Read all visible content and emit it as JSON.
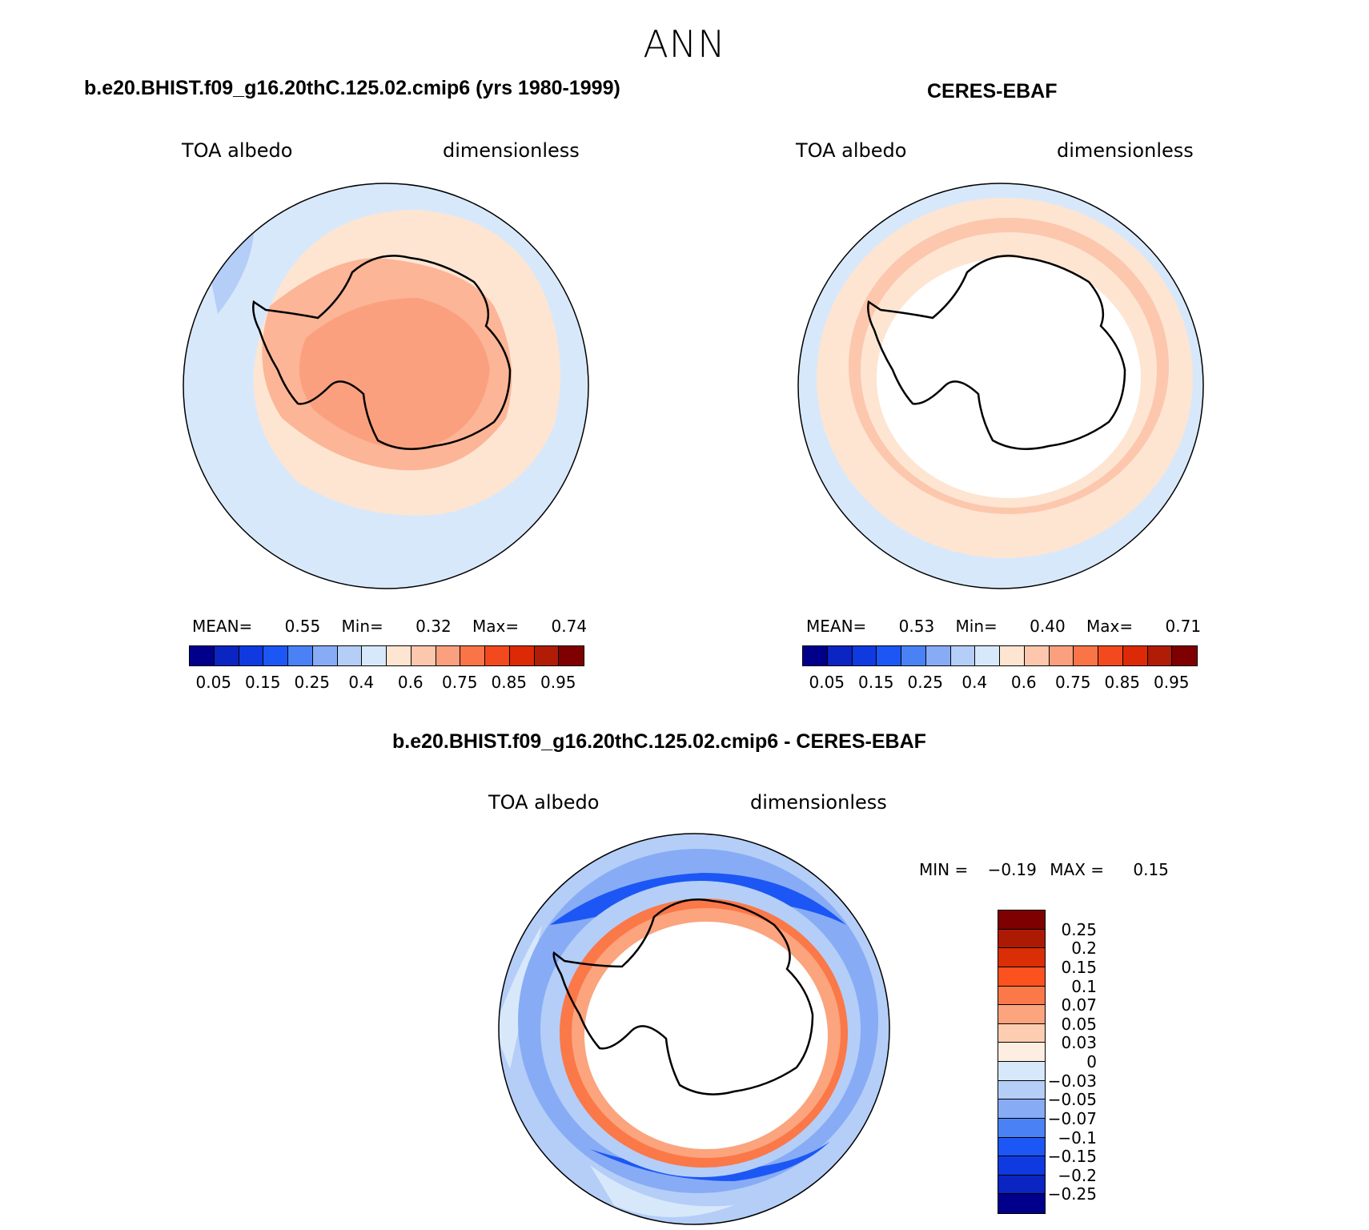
{
  "figure": {
    "title": "ANN"
  },
  "colors": {
    "abs_scale": [
      "#00008b",
      "#0a25c2",
      "#0f3ae0",
      "#1c57f5",
      "#4a82f6",
      "#87acf5",
      "#b4cef8",
      "#d8e8fb",
      "#fde5d2",
      "#fcc7ac",
      "#fba07e",
      "#f97548",
      "#f24a1e",
      "#dc2a06",
      "#b01c05",
      "#7e0000"
    ],
    "diff_scale": [
      "#7e0000",
      "#ad1a04",
      "#da2e06",
      "#fb521f",
      "#fb7849",
      "#fba47d",
      "#fdcdb2",
      "#feeee1",
      "#d8e8fb",
      "#b4cef8",
      "#87acf5",
      "#4a82f6",
      "#1c57f5",
      "#0f3ae0",
      "#0a25c2",
      "#00008b"
    ]
  },
  "chart_data": [
    {
      "type": "heatmap",
      "panel": "model",
      "title": "b.e20.BHIST.f09_g16.20thC.125.02.cmip6 (yrs 1980-1999)",
      "variable": "TOA albedo",
      "units": "dimensionless",
      "projection": "south polar stereographic",
      "stats": {
        "mean_label": "MEAN=",
        "mean": "0.55",
        "min_label": "Min=",
        "min": "0.32",
        "max_label": "Max=",
        "max": "0.74"
      },
      "colorbar_ticks": [
        "0.05",
        "0.15",
        "0.25",
        "0.4",
        "0.6",
        "0.75",
        "0.85",
        "0.95"
      ],
      "colorbar_orientation": "horizontal"
    },
    {
      "type": "heatmap",
      "panel": "observations",
      "title": "CERES-EBAF",
      "variable": "TOA albedo",
      "units": "dimensionless",
      "projection": "south polar stereographic",
      "stats": {
        "mean_label": "MEAN=",
        "mean": "0.53",
        "min_label": "Min=",
        "min": "0.40",
        "max_label": "Max=",
        "max": "0.71"
      },
      "colorbar_ticks": [
        "0.05",
        "0.15",
        "0.25",
        "0.4",
        "0.6",
        "0.75",
        "0.85",
        "0.95"
      ],
      "colorbar_orientation": "horizontal"
    },
    {
      "type": "heatmap",
      "panel": "difference",
      "title": "b.e20.BHIST.f09_g16.20thC.125.02.cmip6 - CERES-EBAF",
      "variable": "TOA albedo",
      "units": "dimensionless",
      "projection": "south polar stereographic",
      "stats": {
        "min_label": "MIN =",
        "min": "−0.19",
        "max_label": "MAX =",
        "max": "0.15"
      },
      "colorbar_ticks": [
        "0.25",
        "0.2",
        "0.15",
        "0.1",
        "0.07",
        "0.05",
        "0.03",
        "0",
        "−0.03",
        "−0.05",
        "−0.07",
        "−0.1",
        "−0.15",
        "−0.2",
        "−0.25"
      ],
      "colorbar_orientation": "vertical"
    }
  ]
}
